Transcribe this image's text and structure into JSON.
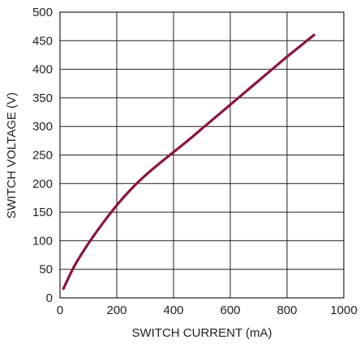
{
  "chart_data": {
    "type": "line",
    "title": "",
    "xlabel": "SWITCH CURRENT (mA)",
    "ylabel": "SWITCH VOLTAGE (V)",
    "xlim": [
      0,
      1000
    ],
    "ylim": [
      0,
      500
    ],
    "x_ticks": [
      0,
      200,
      400,
      600,
      800,
      1000
    ],
    "y_ticks": [
      0,
      50,
      100,
      150,
      200,
      250,
      300,
      350,
      400,
      450,
      500
    ],
    "grid": true,
    "series": [
      {
        "color": "#8b1538",
        "x": [
          12,
          50,
          100,
          150,
          200,
          250,
          300,
          350,
          400,
          450,
          500,
          550,
          600,
          650,
          700,
          750,
          800,
          850,
          895
        ],
        "y": [
          16,
          55,
          95,
          130,
          162,
          190,
          214,
          235,
          255,
          275,
          296,
          317,
          338,
          359,
          380,
          401,
          422,
          442,
          460
        ]
      }
    ]
  }
}
